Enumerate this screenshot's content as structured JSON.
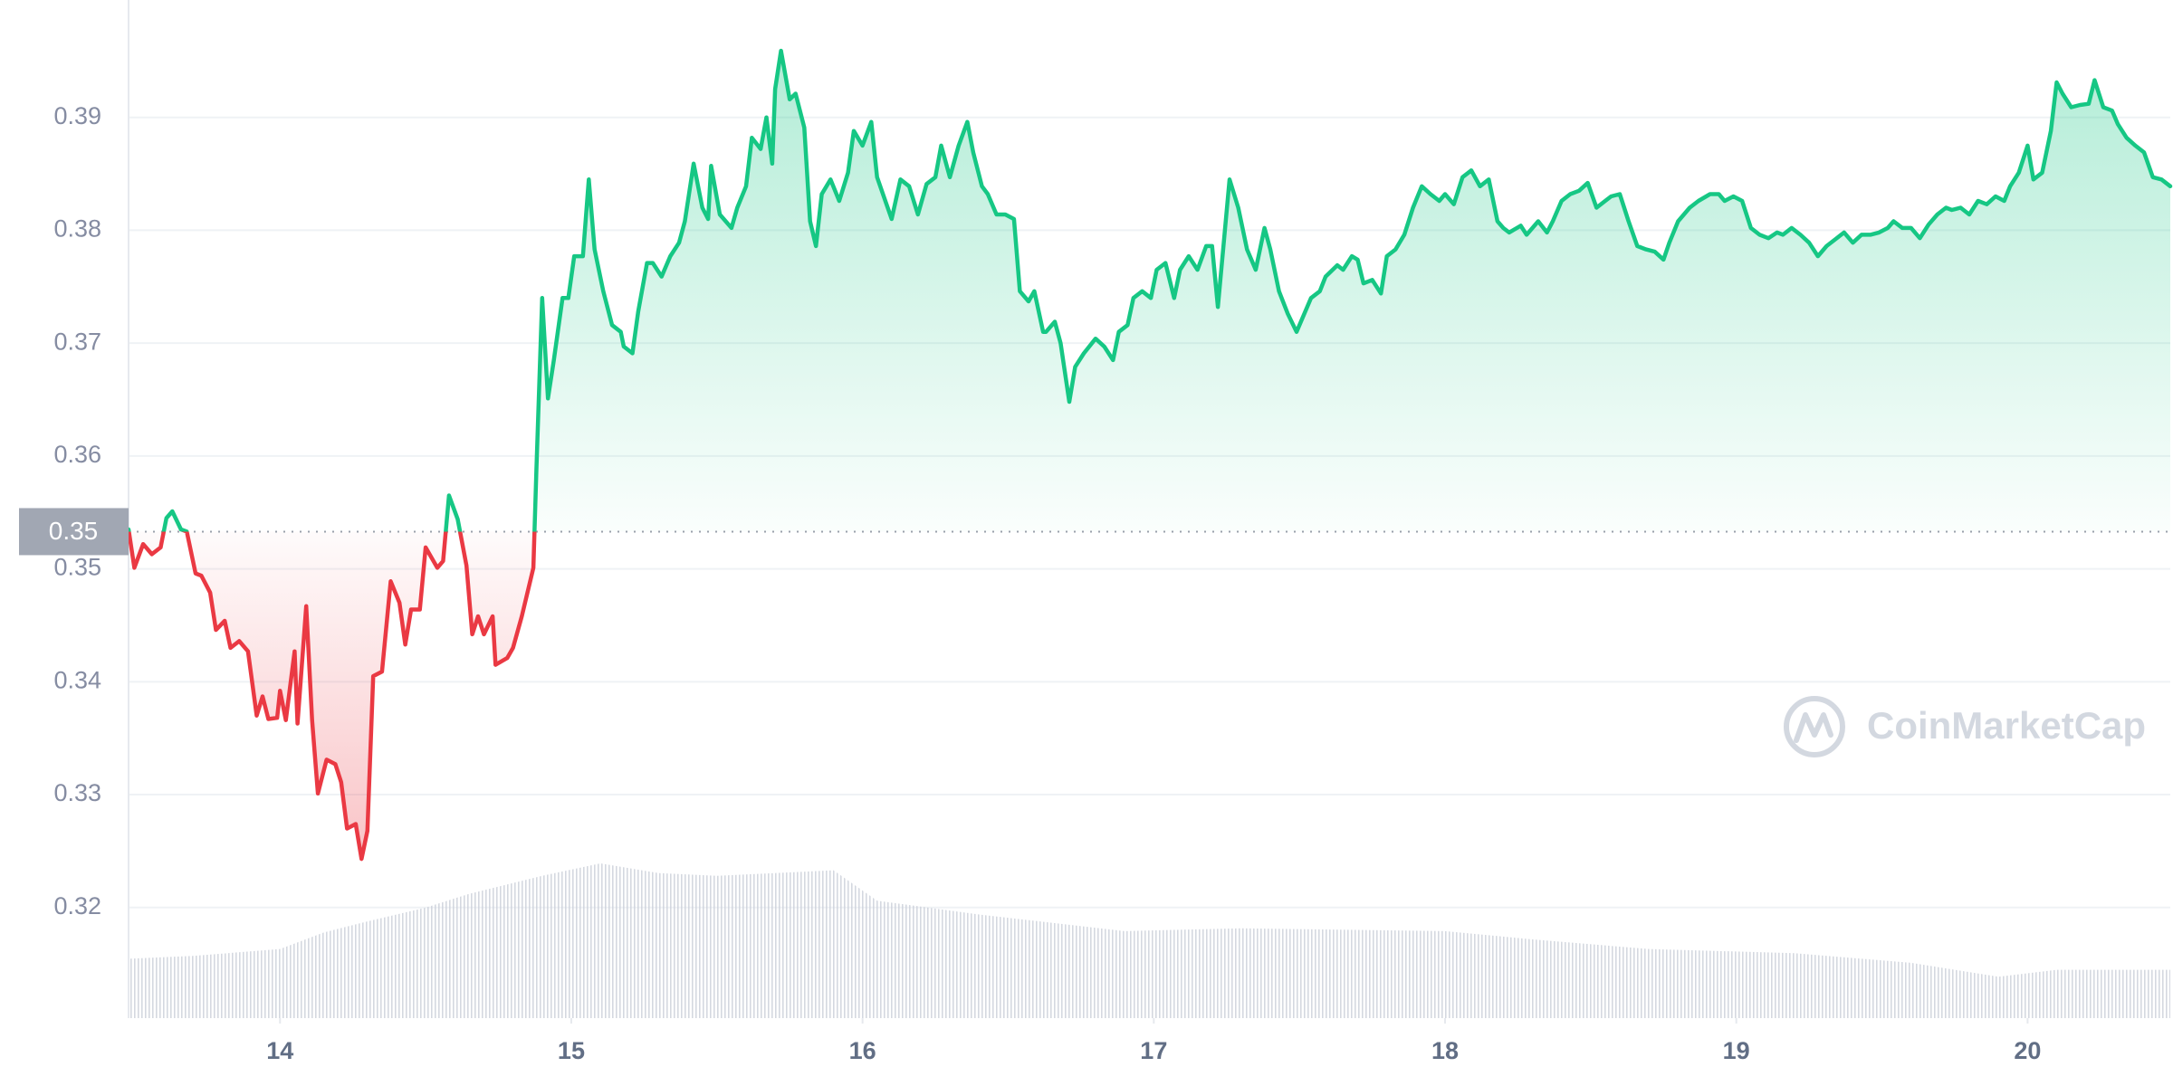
{
  "chart_data": {
    "type": "line",
    "x": [
      13.48,
      13.5,
      13.53,
      13.56,
      13.59,
      13.61,
      13.63,
      13.66,
      13.68,
      13.71,
      13.73,
      13.76,
      13.78,
      13.81,
      13.83,
      13.86,
      13.89,
      13.92,
      13.94,
      13.96,
      13.99,
      14.0,
      14.02,
      14.05,
      14.06,
      14.09,
      14.11,
      14.13,
      14.16,
      14.19,
      14.21,
      14.23,
      14.26,
      14.28,
      14.3,
      14.32,
      14.35,
      14.38,
      14.41,
      14.43,
      14.45,
      14.48,
      14.5,
      14.54,
      14.56,
      14.58,
      14.61,
      14.64,
      14.66,
      14.68,
      14.7,
      14.73,
      14.74,
      14.78,
      14.8,
      14.83,
      14.87,
      14.88,
      14.9,
      14.92,
      14.94,
      14.97,
      14.99,
      15.01,
      15.04,
      15.06,
      15.08,
      15.11,
      15.14,
      15.17,
      15.18,
      15.21,
      15.23,
      15.26,
      15.28,
      15.31,
      15.34,
      15.37,
      15.39,
      15.42,
      15.45,
      15.47,
      15.48,
      15.51,
      15.55,
      15.57,
      15.6,
      15.62,
      15.65,
      15.67,
      15.69,
      15.7,
      15.72,
      15.75,
      15.77,
      15.8,
      15.82,
      15.84,
      15.86,
      15.89,
      15.92,
      15.95,
      15.97,
      16.0,
      16.03,
      16.05,
      16.07,
      16.1,
      16.13,
      16.16,
      16.19,
      16.22,
      16.25,
      16.27,
      16.3,
      16.33,
      16.36,
      16.38,
      16.41,
      16.43,
      16.46,
      16.49,
      16.52,
      16.54,
      16.57,
      16.59,
      16.62,
      16.63,
      16.66,
      16.68,
      16.71,
      16.73,
      16.76,
      16.8,
      16.83,
      16.86,
      16.88,
      16.91,
      16.93,
      16.96,
      16.99,
      17.01,
      17.04,
      17.07,
      17.09,
      17.12,
      17.15,
      17.18,
      17.2,
      17.22,
      17.26,
      17.29,
      17.32,
      17.35,
      17.38,
      17.4,
      17.43,
      17.46,
      17.49,
      17.51,
      17.54,
      17.57,
      17.59,
      17.63,
      17.65,
      17.68,
      17.7,
      17.72,
      17.75,
      17.78,
      17.8,
      17.83,
      17.86,
      17.89,
      17.92,
      17.95,
      17.98,
      18.0,
      18.03,
      18.06,
      18.09,
      18.12,
      18.15,
      18.18,
      18.2,
      18.22,
      18.26,
      18.28,
      18.32,
      18.35,
      18.37,
      18.4,
      18.43,
      18.46,
      18.49,
      18.52,
      18.55,
      18.57,
      18.6,
      18.63,
      18.66,
      18.69,
      18.72,
      18.75,
      18.77,
      18.8,
      18.84,
      18.87,
      18.91,
      18.94,
      18.96,
      18.99,
      19.02,
      19.05,
      19.08,
      19.11,
      19.14,
      19.16,
      19.19,
      19.22,
      19.25,
      19.28,
      19.31,
      19.34,
      19.37,
      19.4,
      19.43,
      19.46,
      19.49,
      19.52,
      19.54,
      19.57,
      19.6,
      19.63,
      19.66,
      19.69,
      19.72,
      19.74,
      19.77,
      19.8,
      19.83,
      19.86,
      19.89,
      19.92,
      19.94,
      19.97,
      20.0,
      20.02,
      20.05,
      20.08,
      20.1,
      20.12,
      20.15,
      20.18,
      20.21,
      20.23,
      20.26,
      20.29,
      20.31,
      20.34,
      20.37,
      20.4,
      20.43,
      20.46,
      20.49
    ],
    "series": [
      {
        "values": [
          0.3535,
          0.3501,
          0.3522,
          0.3513,
          0.3519,
          0.3545,
          0.3551,
          0.3535,
          0.3533,
          0.3496,
          0.3494,
          0.3479,
          0.3446,
          0.3454,
          0.343,
          0.3436,
          0.3427,
          0.337,
          0.3387,
          0.3367,
          0.3368,
          0.3392,
          0.3366,
          0.3427,
          0.3363,
          0.3467,
          0.3366,
          0.3301,
          0.3331,
          0.3327,
          0.3311,
          0.327,
          0.3274,
          0.3243,
          0.3268,
          0.3405,
          0.3409,
          0.3489,
          0.347,
          0.3433,
          0.3464,
          0.3464,
          0.3519,
          0.3501,
          0.3507,
          0.3565,
          0.3544,
          0.3503,
          0.3442,
          0.3458,
          0.3442,
          0.3458,
          0.3415,
          0.3421,
          0.343,
          0.3458,
          0.3501,
          0.3587,
          0.374,
          0.3651,
          0.3685,
          0.374,
          0.374,
          0.3777,
          0.3777,
          0.3845,
          0.3783,
          0.3746,
          0.3716,
          0.371,
          0.3697,
          0.3691,
          0.3728,
          0.3771,
          0.3771,
          0.3759,
          0.3777,
          0.3789,
          0.3808,
          0.3859,
          0.382,
          0.381,
          0.3857,
          0.3814,
          0.3802,
          0.382,
          0.3839,
          0.3882,
          0.3872,
          0.39,
          0.3859,
          0.3925,
          0.3959,
          0.3916,
          0.3921,
          0.3891,
          0.3808,
          0.3786,
          0.3832,
          0.3845,
          0.3826,
          0.3851,
          0.3888,
          0.3875,
          0.3896,
          0.3847,
          0.3832,
          0.381,
          0.3845,
          0.3839,
          0.3814,
          0.3841,
          0.3847,
          0.3875,
          0.3847,
          0.3875,
          0.3896,
          0.3869,
          0.3839,
          0.3832,
          0.3814,
          0.3814,
          0.381,
          0.3746,
          0.3737,
          0.3746,
          0.371,
          0.371,
          0.3719,
          0.37,
          0.3648,
          0.3679,
          0.3691,
          0.3704,
          0.3697,
          0.3685,
          0.371,
          0.3716,
          0.374,
          0.3746,
          0.374,
          0.3765,
          0.3771,
          0.374,
          0.3765,
          0.3777,
          0.3765,
          0.3786,
          0.3786,
          0.3732,
          0.3845,
          0.382,
          0.3783,
          0.3765,
          0.3802,
          0.3783,
          0.3746,
          0.3726,
          0.371,
          0.3722,
          0.374,
          0.3746,
          0.3759,
          0.3769,
          0.3765,
          0.3777,
          0.3774,
          0.3753,
          0.3756,
          0.3744,
          0.3777,
          0.3783,
          0.3796,
          0.382,
          0.3839,
          0.3832,
          0.3826,
          0.3832,
          0.3823,
          0.3847,
          0.3853,
          0.3839,
          0.3845,
          0.3808,
          0.3802,
          0.3798,
          0.3804,
          0.3796,
          0.3808,
          0.3798,
          0.3808,
          0.3826,
          0.3832,
          0.3835,
          0.3842,
          0.382,
          0.3826,
          0.383,
          0.3832,
          0.3808,
          0.3786,
          0.3783,
          0.3781,
          0.3774,
          0.3789,
          0.3808,
          0.382,
          0.3826,
          0.3832,
          0.3832,
          0.3826,
          0.383,
          0.3826,
          0.3802,
          0.3796,
          0.3793,
          0.3798,
          0.3796,
          0.3802,
          0.3796,
          0.3789,
          0.3777,
          0.3786,
          0.3792,
          0.3798,
          0.3789,
          0.3796,
          0.3796,
          0.3798,
          0.3802,
          0.3808,
          0.3802,
          0.3802,
          0.3793,
          0.3805,
          0.3814,
          0.382,
          0.3818,
          0.382,
          0.3814,
          0.3826,
          0.3823,
          0.383,
          0.3826,
          0.3839,
          0.3851,
          0.3875,
          0.3845,
          0.3851,
          0.3888,
          0.3931,
          0.3921,
          0.3909,
          0.3911,
          0.3912,
          0.3933,
          0.3909,
          0.3906,
          0.3894,
          0.3882,
          0.3875,
          0.3869,
          0.3847,
          0.3845,
          0.3839
        ],
        "color_up": "#16c784",
        "color_down": "#ea3943"
      }
    ],
    "xlim": [
      13.48,
      20.49
    ],
    "ylim": [
      0.3102,
      0.4004
    ],
    "xticks": [
      14,
      15,
      16,
      17,
      18,
      19,
      20
    ],
    "yticks": [
      0.32,
      0.33,
      0.34,
      0.35,
      0.36,
      0.37,
      0.38,
      0.39
    ],
    "grid": true,
    "reference": {
      "value": 0.3533,
      "label": "0.35"
    },
    "volume": {
      "x": [
        13.48,
        13.7,
        14.0,
        14.15,
        14.3,
        14.5,
        14.65,
        14.9,
        15.1,
        15.3,
        15.5,
        15.9,
        16.05,
        16.4,
        16.9,
        17.3,
        18.0,
        18.3,
        18.7,
        19.2,
        19.6,
        19.9,
        20.1,
        20.49
      ],
      "values": [
        43,
        45,
        50,
        62,
        70,
        80,
        90,
        103,
        112,
        105,
        103,
        107,
        85,
        75,
        63,
        65,
        63,
        57,
        50,
        47,
        40,
        30,
        35,
        35
      ],
      "color": "#cfd4dd"
    },
    "watermark": "CoinMarketCap"
  }
}
